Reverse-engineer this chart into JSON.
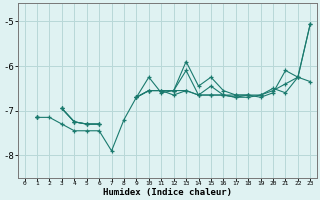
{
  "xlabel": "Humidex (Indice chaleur)",
  "bg_color": "#dff2f2",
  "line_color": "#1a7a6e",
  "grid_color": "#b8d8d8",
  "xlim": [
    -0.5,
    23.5
  ],
  "ylim": [
    -8.5,
    -4.6
  ],
  "yticks": [
    -8,
    -7,
    -6,
    -5
  ],
  "xticks": [
    0,
    1,
    2,
    3,
    4,
    5,
    6,
    7,
    8,
    9,
    10,
    11,
    12,
    13,
    14,
    15,
    16,
    17,
    18,
    19,
    20,
    21,
    22,
    23
  ],
  "series": [
    [
      null,
      -7.15,
      null,
      -6.95,
      -7.25,
      -7.3,
      -7.3,
      null,
      null,
      -6.7,
      -6.55,
      -6.55,
      -6.55,
      -6.55,
      -6.65,
      -6.65,
      -6.65,
      -6.65,
      -6.65,
      -6.65,
      -6.55,
      -6.4,
      -6.25,
      -5.05
    ],
    [
      null,
      -7.15,
      -7.15,
      -7.3,
      -7.45,
      -7.45,
      -7.45,
      -7.9,
      -7.2,
      -6.7,
      -6.25,
      -6.6,
      -6.55,
      -6.1,
      -6.65,
      -6.45,
      -6.65,
      -6.7,
      -6.7,
      -6.65,
      -6.5,
      -6.6,
      -6.25,
      -6.35
    ],
    [
      null,
      -7.15,
      null,
      -6.95,
      -7.25,
      -7.3,
      -7.3,
      null,
      null,
      -6.7,
      -6.55,
      -6.55,
      -6.55,
      -5.9,
      -6.45,
      -6.25,
      -6.55,
      -6.65,
      -6.65,
      null,
      null,
      null,
      null,
      null
    ],
    [
      null,
      -7.15,
      null,
      -6.95,
      -7.25,
      -7.3,
      -7.3,
      null,
      null,
      -6.7,
      -6.55,
      -6.55,
      -6.65,
      -6.55,
      -6.65,
      -6.65,
      -6.65,
      -6.7,
      -6.65,
      -6.7,
      -6.6,
      -6.1,
      -6.25,
      -5.05
    ]
  ]
}
